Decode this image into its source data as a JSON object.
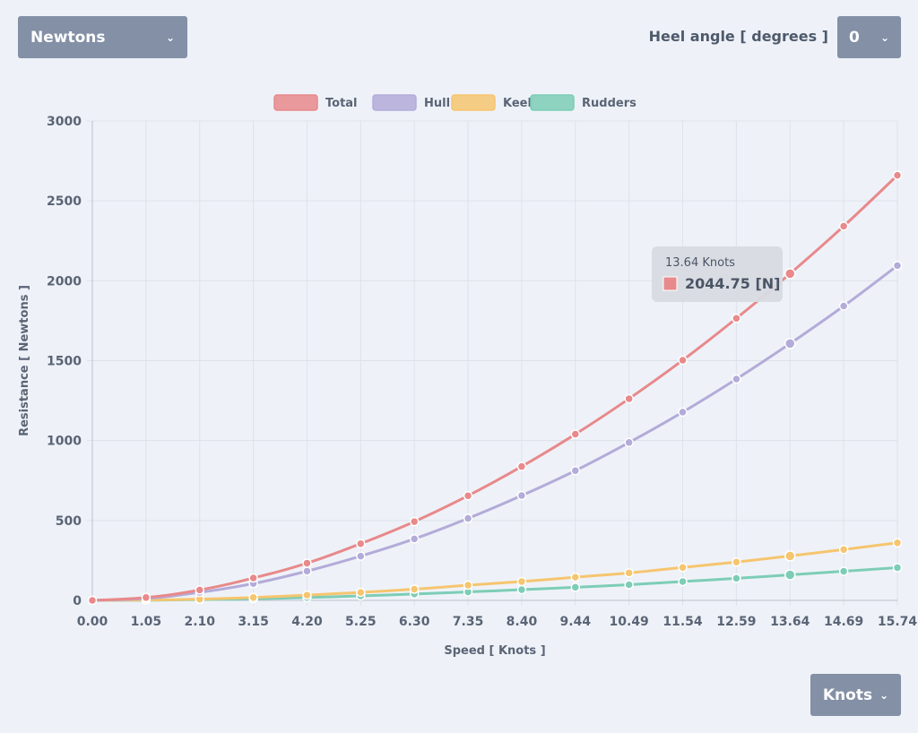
{
  "unit_select": {
    "label": "Newtons",
    "chevron": "chevron-down-icon"
  },
  "heel": {
    "label": "Heel angle [ degrees ]",
    "value": "0",
    "chevron": "chevron-down-icon"
  },
  "speed_select": {
    "label": "Knots",
    "chevron": "chevron-down-icon"
  },
  "chart_data": {
    "type": "line",
    "xlabel": "Speed [ Knots ]",
    "ylabel": "Resistance [ Newtons ]",
    "ylim": [
      0,
      3000
    ],
    "yticks": [
      "0",
      "500",
      "1000",
      "1500",
      "2000",
      "2500",
      "3000"
    ],
    "categories": [
      "0.00",
      "1.05",
      "2.10",
      "3.15",
      "4.20",
      "5.25",
      "6.30",
      "7.35",
      "8.40",
      "9.44",
      "10.49",
      "11.54",
      "12.59",
      "13.64",
      "14.69",
      "15.74"
    ],
    "grid": true,
    "legend_position": "top-center",
    "series": [
      {
        "name": "Total",
        "color": "#e8898b",
        "values": [
          0,
          18,
          65,
          140,
          233,
          355,
          493,
          655,
          838,
          1040,
          1262,
          1503,
          1765,
          2044.75,
          2342,
          2660
        ]
      },
      {
        "name": "Hull",
        "color": "#b3abd9",
        "values": [
          0,
          12,
          50,
          105,
          183,
          277,
          385,
          513,
          656,
          812,
          988,
          1178,
          1385,
          1607,
          1842,
          2095
        ]
      },
      {
        "name": "Keel",
        "color": "#f6c56f",
        "values": [
          0,
          2,
          8,
          18,
          33,
          50,
          70,
          95,
          118,
          145,
          172,
          206,
          240,
          278,
          318,
          360
        ]
      },
      {
        "name": "Rudders",
        "color": "#7dcdb6",
        "values": [
          0,
          1,
          5,
          10,
          18,
          28,
          40,
          53,
          67,
          82,
          98,
          118,
          138,
          160,
          182,
          205
        ]
      }
    ],
    "tooltip": {
      "title": "13.64 Knots",
      "value": "2044.75 [N]",
      "series": "Total",
      "index": 13,
      "color": "#e8898b"
    }
  }
}
